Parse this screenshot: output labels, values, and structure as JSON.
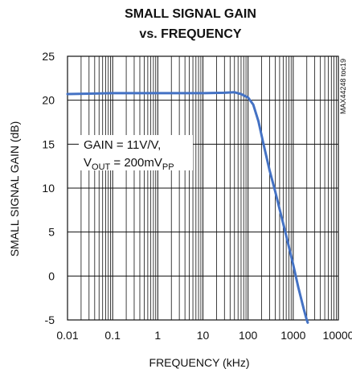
{
  "chart_data": {
    "type": "line",
    "title_line1": "SMALL SIGNAL GAIN",
    "title_line2": "vs. FREQUENCY",
    "xlabel": "FREQUENCY (kHz)",
    "ylabel": "SMALL SIGNAL GAIN (dB)",
    "x_scale": "log",
    "xlim": [
      0.01,
      10000
    ],
    "ylim": [
      -5,
      25
    ],
    "x_ticks": [
      {
        "value": 0.01,
        "label": "0.01"
      },
      {
        "value": 0.1,
        "label": "0.1"
      },
      {
        "value": 1,
        "label": "1"
      },
      {
        "value": 10,
        "label": "10"
      },
      {
        "value": 100,
        "label": "100"
      },
      {
        "value": 1000,
        "label": "1000"
      },
      {
        "value": 10000,
        "label": "10000"
      }
    ],
    "y_ticks": [
      {
        "value": 25,
        "label": "25"
      },
      {
        "value": 20,
        "label": "20"
      },
      {
        "value": 15,
        "label": "15"
      },
      {
        "value": 10,
        "label": "10"
      },
      {
        "value": 5,
        "label": "5"
      },
      {
        "value": 0,
        "label": "0"
      },
      {
        "value": -5,
        "label": "-5"
      }
    ],
    "grid": true,
    "annotation": {
      "line1": "GAIN = 11V/V,",
      "line2_main": "V",
      "line2_sub1": "OUT",
      "line2_mid": " = 200mV",
      "line2_sub2": "PP"
    },
    "watermark": "MAX44248 toc19",
    "series_color": "#4472c4",
    "series": [
      {
        "x": [
          0.01,
          0.03,
          0.1,
          0.3,
          1,
          3,
          10,
          30,
          50,
          70,
          100,
          130,
          170,
          220,
          300,
          400,
          500,
          700,
          1000,
          1300,
          1700,
          2000,
          2100
        ],
        "y": [
          20.7,
          20.75,
          20.8,
          20.8,
          20.8,
          20.8,
          20.8,
          20.85,
          20.9,
          20.7,
          20.3,
          19.5,
          17.6,
          15.0,
          12.0,
          9.6,
          7.6,
          4.6,
          1.3,
          -1.3,
          -3.7,
          -5.0,
          -5.3
        ]
      }
    ]
  }
}
